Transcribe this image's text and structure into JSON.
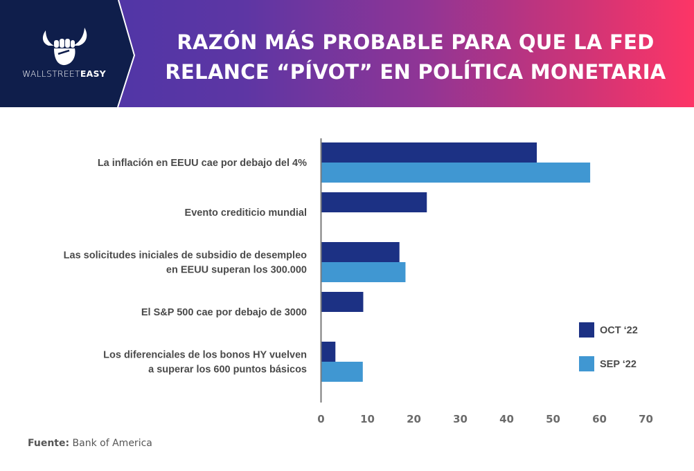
{
  "brand": {
    "name_light": "WALLSTREET",
    "name_bold": "EASY",
    "logo_icon": "bull-horns-fist-icon",
    "panel_color": "#0f1e4b"
  },
  "header": {
    "title_line1": "RAZÓN MÁS PROBABLE PARA QUE LA FED",
    "title_line2": "RELANCE “PÍVOT” EN POLÍTICA MONETARIA",
    "gradient_start": "#4636a8",
    "gradient_end": "#fd3566"
  },
  "source": {
    "label": "Fuente:",
    "value": "Bank of America"
  },
  "chart_data": {
    "type": "bar",
    "orientation": "horizontal",
    "title": "RAZÓN MÁS PROBABLE PARA QUE LA FED RELANCE “PÍVOT” EN POLÍTICA MONETARIA",
    "xlabel": "",
    "ylabel": "",
    "xlim": [
      0,
      70
    ],
    "xticks": [
      0,
      10,
      20,
      30,
      40,
      50,
      60,
      70
    ],
    "grid": false,
    "legend_position": "right",
    "categories": [
      [
        "La inflación en EEUU cae por debajo del 4%"
      ],
      [
        "Evento crediticio mundial"
      ],
      [
        "Las solicitudes iniciales de subsidio de desempleo",
        "en EEUU superan los 300.000"
      ],
      [
        "El S&P 500 cae por debajo de 3000"
      ],
      [
        "Los diferenciales de los bonos HY vuelven",
        "a superar los 600 puntos básicos"
      ]
    ],
    "series": [
      {
        "name": "OCT ‘22",
        "color": "#1c3184",
        "values": [
          46.5,
          22.8,
          16.9,
          9.1,
          3.1
        ]
      },
      {
        "name": "SEP ‘22",
        "color": "#4097d2",
        "values": [
          58,
          null,
          18.2,
          null,
          9
        ]
      }
    ]
  }
}
